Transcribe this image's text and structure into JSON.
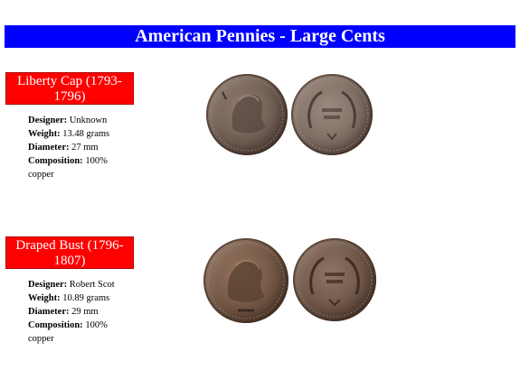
{
  "page": {
    "title": "American Pennies - Large Cents"
  },
  "sections": [
    {
      "name": "Liberty Cap (1793-1796)",
      "specs": {
        "designer_label": "Designer:",
        "designer": " Unknown",
        "weight_label": "Weight:",
        "weight": " 13.48 grams",
        "diameter_label": "Diameter:",
        "diameter": " 27 mm",
        "composition_label": "Composition:",
        "composition": " 100% copper"
      },
      "images": {
        "obverse_icon": "liberty-cap-obverse-coin",
        "reverse_icon": "one-cent-reverse-coin",
        "colors": {
          "obverse": "#6e5c52",
          "reverse": "#7e6d63"
        }
      }
    },
    {
      "name": "Draped Bust (1796-1807)",
      "specs": {
        "designer_label": "Designer:",
        "designer": " Robert Scot",
        "weight_label": "Weight:",
        "weight": " 10.89 grams",
        "diameter_label": "Diameter:",
        "diameter": " 29 mm",
        "composition_label": "Composition:",
        "composition": " 100% copper"
      },
      "images": {
        "obverse_icon": "draped-bust-obverse-coin",
        "reverse_icon": "one-cent-wreath-reverse-coin",
        "colors": {
          "obverse": "#715543",
          "reverse": "#6d5446"
        }
      }
    }
  ],
  "theme": {
    "banner_bg": "#0000ff",
    "banner_text": "#ffffff",
    "tag_bg": "#ff0000",
    "tag_text": "#ffffff"
  }
}
